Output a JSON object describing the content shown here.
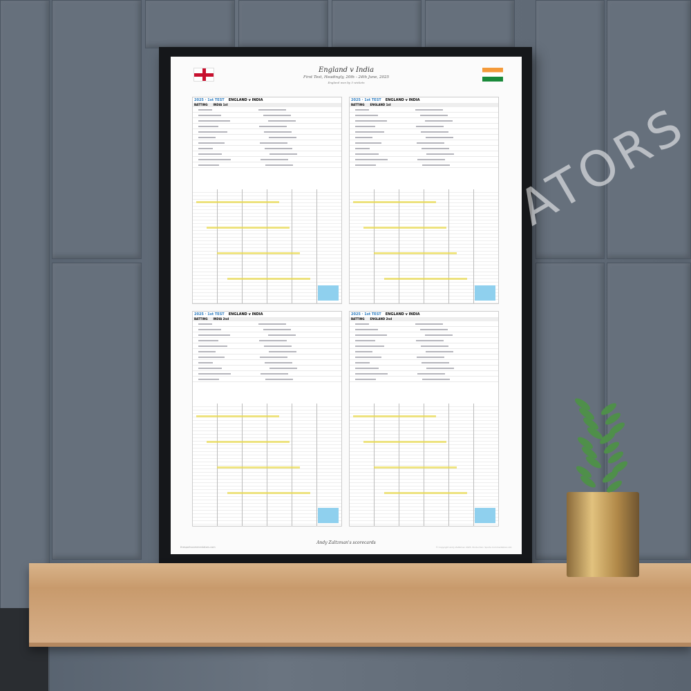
{
  "poster": {
    "title": "England v India",
    "subtitle": "First Test, Headingly, 20th - 24th June, 2025",
    "result": "England won by 5 wickets",
    "credit": "Andy Zaltzman's scorecards",
    "url": "thesportscommentators.com",
    "copyright": "© Copyright Andy Zaltzman 2025. Production: Sports Commentators Ltd."
  },
  "cards": [
    {
      "match": "2025 · 1st TEST",
      "teams": "ENGLAND v INDIA",
      "batting": "BATTING",
      "innings": "INDIA 1st"
    },
    {
      "match": "2025 · 1st TEST",
      "teams": "ENGLAND v INDIA",
      "batting": "BATTING",
      "innings": "ENGLAND 1st"
    },
    {
      "match": "2025 · 1st TEST",
      "teams": "ENGLAND v INDIA",
      "batting": "BATTING",
      "innings": "INDIA 2nd"
    },
    {
      "match": "2025 · 1st TEST",
      "teams": "ENGLAND v INDIA",
      "batting": "BATTING",
      "innings": "ENGLAND 2nd"
    }
  ],
  "watermark": "ATORS",
  "colors": {
    "wall": "#5c6673",
    "frame": "#15171a",
    "shelf": "#c89a6c",
    "highlight": "#e8d84a",
    "note": "#8fd0ee"
  }
}
